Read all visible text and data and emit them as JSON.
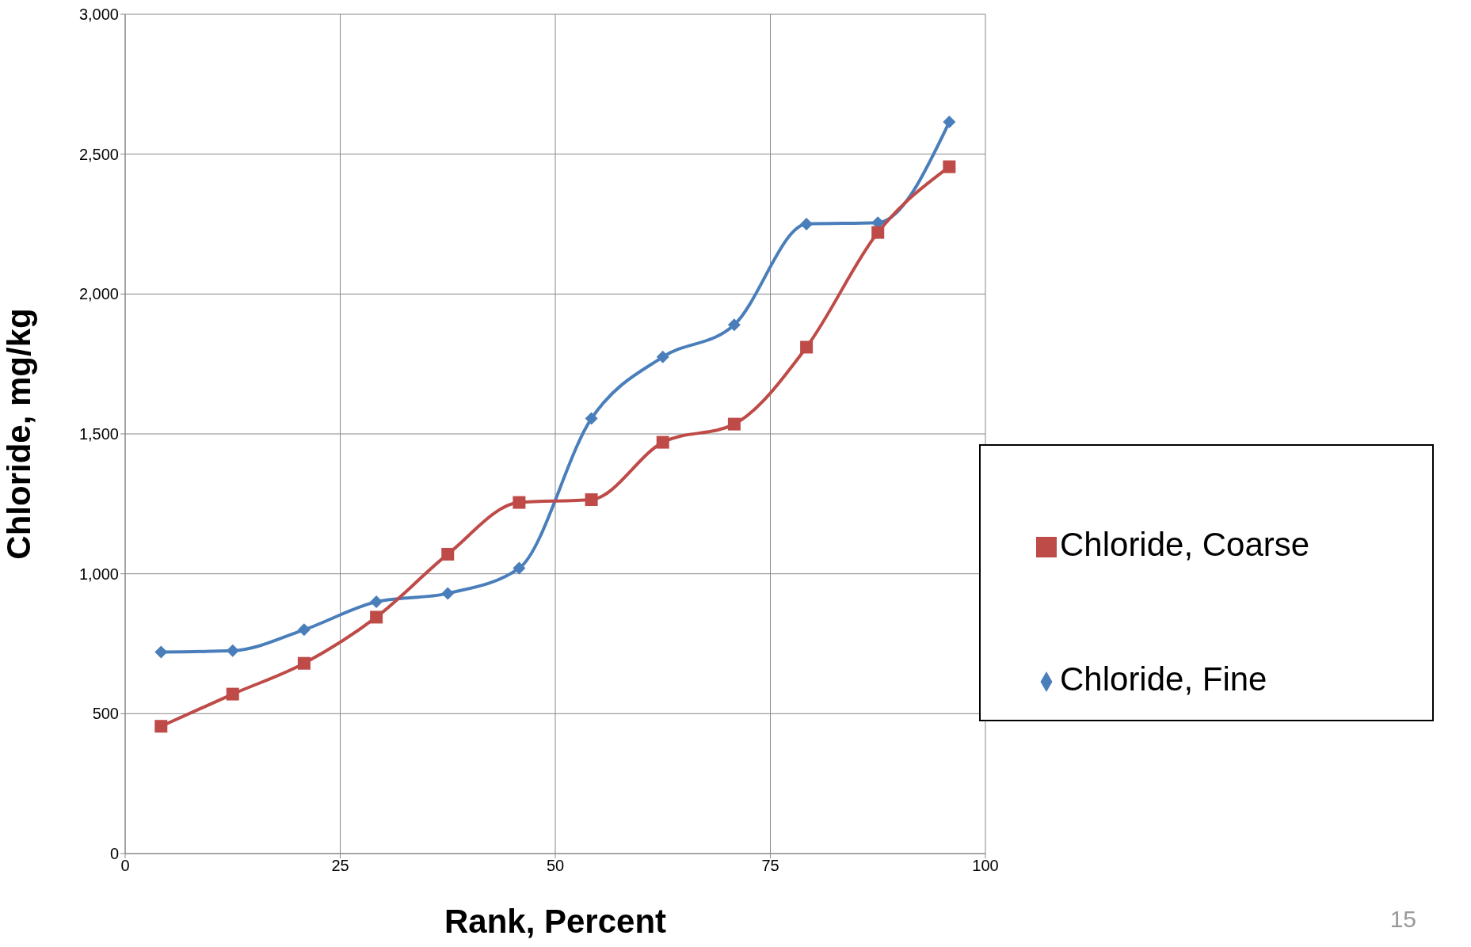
{
  "chart_data": {
    "type": "line",
    "xlabel": "Rank, Percent",
    "ylabel": "Chloride, mg/kg",
    "x": [
      4.17,
      12.5,
      20.8,
      29.2,
      37.5,
      45.8,
      54.2,
      62.5,
      70.8,
      79.2,
      87.5,
      95.8
    ],
    "series": [
      {
        "name": "Chloride, Fine",
        "color": "#4a7ebb",
        "marker": "diamond",
        "values": [
          720,
          725,
          800,
          900,
          930,
          1020,
          1555,
          1775,
          1890,
          2250,
          2255,
          2615
        ]
      },
      {
        "name": "Chloride, Coarse",
        "color": "#be4b48",
        "marker": "square",
        "values": [
          455,
          570,
          680,
          845,
          1070,
          1255,
          1265,
          1470,
          1535,
          1810,
          2220,
          2455
        ]
      }
    ],
    "xlim": [
      0,
      100
    ],
    "xticks": [
      0,
      25,
      50,
      75,
      100
    ],
    "ylim": [
      0,
      3000
    ],
    "yticks": [
      0,
      {
        "value": 500,
        "label": "500"
      },
      {
        "value": 1000,
        "label": "1,000"
      },
      {
        "value": 1500,
        "label": "1,500"
      },
      {
        "value": 2000,
        "label": "2,000"
      },
      {
        "value": 2500,
        "label": "2,500"
      },
      {
        "value": 3000,
        "label": "3,000"
      }
    ],
    "grid": true,
    "legend": "right",
    "line_style": "solid",
    "annotations": [
      "15"
    ]
  }
}
